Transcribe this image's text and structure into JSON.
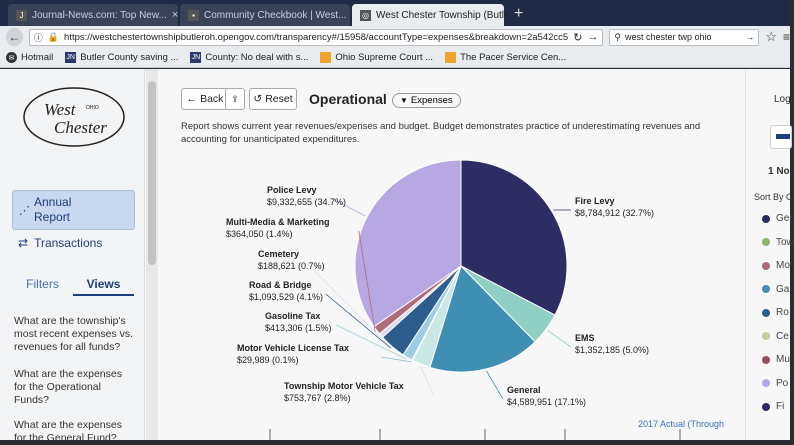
{
  "browser": {
    "tabs": [
      {
        "title": "Journal-News.com: Top New...",
        "active": false
      },
      {
        "title": "Community Checkbook | West...",
        "active": false
      },
      {
        "title": "West Chester Township (Butle",
        "active": true
      }
    ],
    "url": "https://westchestertownshipbutleroh.opengov.com/transparency#/15958/accountType=expenses&breakdown=2a542cc5",
    "search_value": "west chester twp ohio",
    "bookmarks": [
      {
        "label": "Hotmail",
        "icon": "hotmail-icon"
      },
      {
        "label": "Butler County saving ...",
        "icon": "jn-icon"
      },
      {
        "label": "County: No deal with s...",
        "icon": "jn-icon"
      },
      {
        "label": "Ohio Supreme Court ...",
        "icon": "folder-icon"
      },
      {
        "label": "The Pacer Service Cen...",
        "icon": "folder-icon"
      }
    ]
  },
  "sidebar": {
    "logo": {
      "line1": "West",
      "line2": "Chester",
      "small": "OHIO"
    },
    "annual_report": "Annual Report",
    "transactions": "Transactions",
    "tab_filters": "Filters",
    "tab_views": "Views",
    "questions": [
      "What are the township's most recent expenses vs. revenues for all funds?",
      "What are the expenses for the Operational Funds?",
      "What are the expenses for the General Fund?"
    ]
  },
  "toolbar": {
    "back": "Back",
    "reset": "Reset",
    "title": "Operational",
    "pill": "Expenses"
  },
  "description": "Report shows current year revenues/expenses and budget. Budget demonstrates practice of underestimating revenues and accounting for unanticipated expenditures.",
  "chart_data": {
    "type": "pie",
    "slices": [
      {
        "name": "Fire Levy",
        "value": 8784912,
        "pct": "32.7%",
        "amount": "$8,784,912",
        "color": "#2e2d63"
      },
      {
        "name": "EMS",
        "value": 1352185,
        "pct": "5.0%",
        "amount": "$1,352,185",
        "color": "#8fcfc4"
      },
      {
        "name": "General",
        "value": 4589951,
        "pct": "17.1%",
        "amount": "$4,589,951",
        "color": "#3f8fb3"
      },
      {
        "name": "Township Motor Vehicle Tax",
        "value": 753767,
        "pct": "2.8%",
        "amount": "$753,767",
        "color": "#c9e7e4"
      },
      {
        "name": "Motor Vehicle License Tax",
        "value": 29989,
        "pct": "0.1%",
        "amount": "$29,989",
        "color": "#7fbecf"
      },
      {
        "name": "Gasoline Tax",
        "value": 413306,
        "pct": "1.5%",
        "amount": "$413,306",
        "color": "#9ccde3"
      },
      {
        "name": "Road & Bridge",
        "value": 1093529,
        "pct": "4.1%",
        "amount": "$1,093,529",
        "color": "#2c5d8c"
      },
      {
        "name": "Cemetery",
        "value": 188621,
        "pct": "0.7%",
        "amount": "$188,621",
        "color": "#dfd9ef"
      },
      {
        "name": "Multi-Media & Marketing",
        "value": 364050,
        "pct": "1.4%",
        "amount": "$364,050",
        "color": "#b06b7a"
      },
      {
        "name": "Police Levy",
        "value": 9332655,
        "pct": "34.7%",
        "amount": "$9,332,655",
        "color": "#b7a8e3"
      }
    ],
    "footer_label": "2017 Actual (Through"
  },
  "right_panel": {
    "login": "Logi",
    "notes": "1 No",
    "sort_by": "Sort By G",
    "items": [
      {
        "label": "Ger",
        "color": "#2e2d63"
      },
      {
        "label": "Tow",
        "color": "#8fb86a"
      },
      {
        "label": "Mo",
        "color": "#b06b7a"
      },
      {
        "label": "Ga",
        "color": "#3f8fb3"
      },
      {
        "label": "Ro",
        "color": "#2c5d8c"
      },
      {
        "label": "Ce",
        "color": "#c9c8a0"
      },
      {
        "label": "Mu",
        "color": "#9c4a5a"
      },
      {
        "label": "Po",
        "color": "#b7a8e3"
      },
      {
        "label": "Fi",
        "color": "#2e2d63"
      }
    ]
  }
}
